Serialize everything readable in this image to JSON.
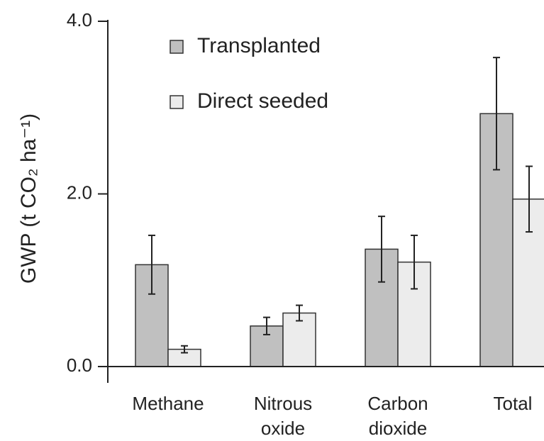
{
  "chart_data": {
    "type": "bar",
    "y_label": "GWP (t CO₂ ha⁻¹)",
    "categories": [
      "Methane",
      "Nitrous\noxide",
      "Carbon\ndioxide",
      "Total"
    ],
    "series": [
      {
        "name": "Transplanted",
        "color": "#c0c0c0",
        "values": [
          1.18,
          0.47,
          1.36,
          2.93
        ],
        "errors": [
          0.34,
          0.1,
          0.38,
          0.65
        ]
      },
      {
        "name": "Direct seeded",
        "color": "#ececec",
        "values": [
          0.2,
          0.62,
          1.21,
          1.94
        ],
        "errors": [
          0.04,
          0.09,
          0.31,
          0.38
        ]
      }
    ],
    "ylim": [
      0,
      4
    ],
    "yticks": [
      {
        "value": 0,
        "label": "0.0"
      },
      {
        "value": 2,
        "label": "2.0"
      },
      {
        "value": 4,
        "label": "4.0"
      }
    ],
    "legend": "top-left"
  }
}
